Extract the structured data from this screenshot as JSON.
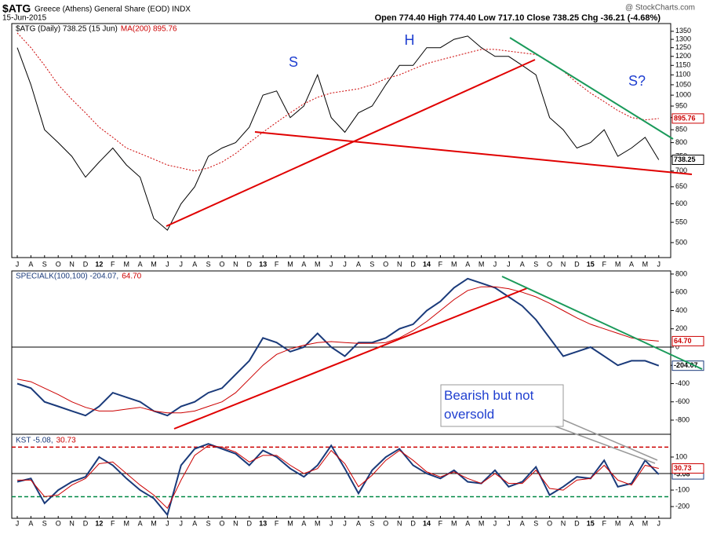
{
  "header": {
    "symbol": "$ATG",
    "name": "Greece (Athens) General Share (EOD) INDX",
    "date": "15-Jun-2015",
    "quote": "Open 774.40  High 774.40  Low 717.10  Close 738.25  Chg -36.21 (-4.68%)",
    "source": "@ StockCharts.com"
  },
  "annotations": [
    "S",
    "H",
    "S?",
    "Bearish but not oversold"
  ],
  "chart_data": [
    {
      "type": "line",
      "log_scale": true,
      "categories": [
        "J",
        "A",
        "S",
        "O",
        "N",
        "D",
        "12",
        "F",
        "M",
        "A",
        "M",
        "J",
        "J",
        "A",
        "S",
        "O",
        "N",
        "D",
        "13",
        "F",
        "M",
        "A",
        "M",
        "J",
        "J",
        "A",
        "S",
        "O",
        "N",
        "D",
        "14",
        "F",
        "M",
        "A",
        "M",
        "J",
        "J",
        "A",
        "S",
        "O",
        "N",
        "D",
        "15",
        "F",
        "M",
        "A",
        "M",
        "J"
      ],
      "ylim": [
        466,
        1400
      ],
      "yticks": [
        500,
        550,
        600,
        650,
        700,
        750,
        800,
        850,
        900,
        950,
        1000,
        1050,
        1100,
        1150,
        1200,
        1250,
        1300,
        1350
      ],
      "series": [
        {
          "name": "$ATG (Daily) 738.25 (15 Jun)",
          "color": "#000000",
          "style": "solid",
          "tag": "738.25",
          "values": [
            1250,
            1050,
            850,
            800,
            750,
            680,
            730,
            780,
            720,
            680,
            560,
            530,
            600,
            650,
            750,
            780,
            800,
            860,
            1000,
            1020,
            900,
            950,
            1100,
            900,
            840,
            920,
            950,
            1050,
            1150,
            1150,
            1250,
            1250,
            1300,
            1320,
            1250,
            1200,
            1200,
            1150,
            1100,
            900,
            850,
            780,
            800,
            850,
            750,
            780,
            820,
            738
          ]
        },
        {
          "name": "MA(200) 895.76",
          "color": "#cc0000",
          "style": "dotted",
          "tag": "895.76",
          "values": [
            1340,
            1250,
            1150,
            1050,
            980,
            920,
            860,
            820,
            780,
            760,
            740,
            720,
            710,
            700,
            710,
            730,
            760,
            800,
            840,
            880,
            920,
            960,
            990,
            1010,
            1020,
            1030,
            1050,
            1080,
            1100,
            1130,
            1160,
            1180,
            1200,
            1220,
            1240,
            1240,
            1230,
            1220,
            1210,
            1170,
            1120,
            1060,
            1010,
            970,
            930,
            900,
            890,
            896
          ]
        }
      ]
    },
    {
      "type": "line",
      "ylim": [
        -955,
        834
      ],
      "yticks": [
        -800,
        -600,
        -400,
        -200,
        0,
        200,
        400,
        600,
        800
      ],
      "levels": [
        {
          "value": 0,
          "color": "#000000",
          "style": "solid"
        }
      ],
      "series": [
        {
          "name": "SPECIALK(100,100) -204.07,",
          "color": "#1a3a7a",
          "style": "thick",
          "tag": "-204.07",
          "values": [
            -400,
            -450,
            -600,
            -650,
            -700,
            -750,
            -650,
            -500,
            -550,
            -600,
            -700,
            -750,
            -650,
            -600,
            -500,
            -450,
            -300,
            -150,
            100,
            50,
            -50,
            0,
            150,
            0,
            -100,
            50,
            50,
            100,
            200,
            250,
            400,
            500,
            650,
            750,
            700,
            650,
            550,
            450,
            300,
            100,
            -100,
            -50,
            0,
            -100,
            -200,
            -150,
            -150,
            -204
          ]
        },
        {
          "name": "64.70",
          "color": "#cc0000",
          "style": "solid",
          "tag": "64.70",
          "values": [
            -350,
            -380,
            -450,
            -520,
            -600,
            -660,
            -700,
            -700,
            -680,
            -660,
            -700,
            -720,
            -720,
            -700,
            -650,
            -600,
            -500,
            -350,
            -200,
            -80,
            -20,
            20,
            50,
            60,
            50,
            40,
            40,
            50,
            100,
            180,
            280,
            400,
            520,
            620,
            660,
            660,
            640,
            600,
            550,
            480,
            400,
            320,
            250,
            200,
            150,
            100,
            80,
            65
          ]
        }
      ]
    },
    {
      "type": "line",
      "categories": [
        "J",
        "A",
        "S",
        "O",
        "N",
        "D",
        "12",
        "F",
        "M",
        "A",
        "M",
        "J",
        "J",
        "A",
        "S",
        "O",
        "N",
        "D",
        "13",
        "F",
        "M",
        "A",
        "M",
        "J",
        "J",
        "A",
        "S",
        "O",
        "N",
        "D",
        "14",
        "F",
        "M",
        "A",
        "M",
        "J",
        "J",
        "A",
        "S",
        "O",
        "N",
        "D",
        "15",
        "F",
        "M",
        "A",
        "M",
        "J"
      ],
      "ylim": [
        -271,
        238
      ],
      "yticks": [
        -200,
        -100,
        0,
        100
      ],
      "levels": [
        {
          "value": 0,
          "color": "#000000",
          "style": "solid"
        },
        {
          "value": 160,
          "color": "#cc0000",
          "style": "dashed"
        },
        {
          "value": -140,
          "color": "#008844",
          "style": "dashed"
        }
      ],
      "series": [
        {
          "name": "KST -5.08,",
          "color": "#1a3a7a",
          "style": "thick",
          "tag": "-5.08",
          "values": [
            -50,
            -30,
            -180,
            -100,
            -50,
            -20,
            100,
            50,
            -30,
            -100,
            -150,
            -250,
            50,
            150,
            180,
            150,
            120,
            50,
            140,
            100,
            30,
            -20,
            50,
            170,
            30,
            -120,
            20,
            100,
            150,
            50,
            0,
            -30,
            20,
            -50,
            -60,
            20,
            -80,
            -50,
            40,
            -130,
            -80,
            -20,
            -30,
            80,
            -80,
            -60,
            80,
            -5
          ]
        },
        {
          "name": "30.73",
          "color": "#cc0000",
          "style": "solid",
          "tag": "30.73",
          "values": [
            -40,
            -40,
            -140,
            -130,
            -70,
            -30,
            60,
            70,
            0,
            -70,
            -130,
            -210,
            -40,
            110,
            170,
            160,
            130,
            70,
            110,
            110,
            50,
            0,
            30,
            140,
            60,
            -80,
            -10,
            80,
            140,
            80,
            10,
            -20,
            10,
            -30,
            -60,
            0,
            -60,
            -60,
            20,
            -90,
            -100,
            -40,
            -30,
            50,
            -40,
            -70,
            50,
            31
          ]
        }
      ]
    }
  ]
}
